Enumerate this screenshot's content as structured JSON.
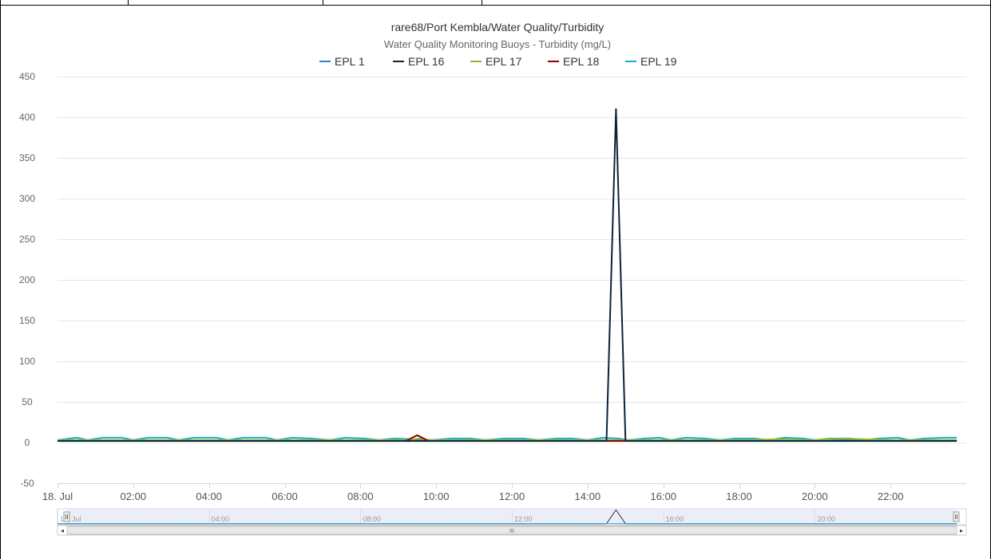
{
  "chart_data": {
    "type": "line",
    "title": "rare68/Port Kembla/Water Quality/Turbidity",
    "subtitle": "Water Quality Monitoring Buoys - Turbidity (mg/L)",
    "xlabel": "",
    "ylabel": "",
    "x_unit": "hours on 18 Jul",
    "xlim": [
      0,
      24
    ],
    "ylim": [
      -50,
      450
    ],
    "y_ticks": [
      -50,
      0,
      50,
      100,
      150,
      200,
      250,
      300,
      350,
      400,
      450
    ],
    "x_ticks": [
      {
        "value": 0,
        "label": "18. Jul"
      },
      {
        "value": 2,
        "label": "02:00"
      },
      {
        "value": 4,
        "label": "04:00"
      },
      {
        "value": 6,
        "label": "06:00"
      },
      {
        "value": 8,
        "label": "08:00"
      },
      {
        "value": 10,
        "label": "10:00"
      },
      {
        "value": 12,
        "label": "12:00"
      },
      {
        "value": 14,
        "label": "14:00"
      },
      {
        "value": 16,
        "label": "16:00"
      },
      {
        "value": 18,
        "label": "18:00"
      },
      {
        "value": 20,
        "label": "20:00"
      },
      {
        "value": 22,
        "label": "22:00"
      }
    ],
    "grid": true,
    "legend_position": "top-center",
    "series": [
      {
        "name": "EPL 1",
        "color": "#2f7ed8",
        "points": [
          [
            0,
            3
          ],
          [
            2,
            3
          ],
          [
            4,
            3
          ],
          [
            6,
            3
          ],
          [
            8,
            3
          ],
          [
            10,
            3
          ],
          [
            12,
            3
          ],
          [
            14,
            3
          ],
          [
            16,
            3
          ],
          [
            18,
            3
          ],
          [
            20,
            3
          ],
          [
            22,
            3
          ],
          [
            23.75,
            3
          ]
        ]
      },
      {
        "name": "EPL 16",
        "color": "#0d233a",
        "points": [
          [
            0,
            2
          ],
          [
            2,
            2
          ],
          [
            4,
            2
          ],
          [
            6,
            2
          ],
          [
            8,
            2
          ],
          [
            10,
            2
          ],
          [
            12,
            2
          ],
          [
            14,
            2
          ],
          [
            14.5,
            2
          ],
          [
            14.75,
            410
          ],
          [
            15,
            2
          ],
          [
            16,
            2
          ],
          [
            18,
            2
          ],
          [
            20,
            2
          ],
          [
            22,
            2
          ],
          [
            23.75,
            2
          ]
        ]
      },
      {
        "name": "EPL 17",
        "color": "#8bbc21",
        "points": [
          [
            0,
            3
          ],
          [
            2,
            3
          ],
          [
            4,
            3
          ],
          [
            6,
            3
          ],
          [
            8,
            3
          ],
          [
            9.3,
            3
          ],
          [
            9.55,
            5
          ],
          [
            9.8,
            3
          ],
          [
            12,
            3
          ],
          [
            14,
            3
          ],
          [
            16,
            3
          ],
          [
            18,
            3
          ],
          [
            19,
            4
          ],
          [
            20,
            3
          ],
          [
            20.7,
            5
          ],
          [
            22,
            3
          ],
          [
            23.75,
            3
          ]
        ]
      },
      {
        "name": "EPL 18",
        "color": "#910000",
        "points": [
          [
            0,
            2
          ],
          [
            2,
            2
          ],
          [
            4,
            2
          ],
          [
            6,
            2
          ],
          [
            8,
            2
          ],
          [
            9.2,
            2
          ],
          [
            9.5,
            9
          ],
          [
            9.8,
            2
          ],
          [
            12,
            2
          ],
          [
            14,
            2
          ],
          [
            16,
            2
          ],
          [
            18,
            2
          ],
          [
            20,
            2
          ],
          [
            22,
            2
          ],
          [
            23.75,
            2
          ]
        ]
      },
      {
        "name": "EPL 19",
        "color": "#1aadce",
        "points": [
          [
            0,
            3
          ],
          [
            0.5,
            6
          ],
          [
            0.8,
            3
          ],
          [
            1.2,
            6
          ],
          [
            1.7,
            6
          ],
          [
            2.0,
            3
          ],
          [
            2.4,
            6
          ],
          [
            2.9,
            6
          ],
          [
            3.2,
            3
          ],
          [
            3.6,
            6
          ],
          [
            4.2,
            6
          ],
          [
            4.5,
            3
          ],
          [
            4.9,
            6
          ],
          [
            5.5,
            6
          ],
          [
            5.8,
            3
          ],
          [
            6.2,
            6
          ],
          [
            6.7,
            5
          ],
          [
            7.2,
            3
          ],
          [
            7.6,
            6
          ],
          [
            8.1,
            5
          ],
          [
            8.5,
            3
          ],
          [
            8.9,
            5
          ],
          [
            9.4,
            4
          ],
          [
            9.9,
            3
          ],
          [
            10.4,
            5
          ],
          [
            10.9,
            5
          ],
          [
            11.3,
            3
          ],
          [
            11.8,
            5
          ],
          [
            12.3,
            5
          ],
          [
            12.7,
            3
          ],
          [
            13.2,
            5
          ],
          [
            13.6,
            5
          ],
          [
            14.0,
            3
          ],
          [
            14.4,
            6
          ],
          [
            14.8,
            5
          ],
          [
            15.1,
            3
          ],
          [
            15.5,
            5
          ],
          [
            15.9,
            6
          ],
          [
            16.2,
            3
          ],
          [
            16.6,
            6
          ],
          [
            17.1,
            5
          ],
          [
            17.5,
            3
          ],
          [
            17.9,
            5
          ],
          [
            18.4,
            5
          ],
          [
            18.8,
            3
          ],
          [
            19.2,
            6
          ],
          [
            19.7,
            5
          ],
          [
            20.0,
            3
          ],
          [
            20.4,
            5
          ],
          [
            20.9,
            5
          ],
          [
            21.3,
            3
          ],
          [
            21.7,
            5
          ],
          [
            22.2,
            6
          ],
          [
            22.5,
            3
          ],
          [
            22.9,
            5
          ],
          [
            23.4,
            6
          ],
          [
            23.75,
            6
          ]
        ]
      }
    ],
    "navigator": {
      "labels": [
        {
          "value": 0,
          "label": "18. Jul"
        },
        {
          "value": 4,
          "label": "04:00"
        },
        {
          "value": 8,
          "label": "08:00"
        },
        {
          "value": 12,
          "label": "12:00"
        },
        {
          "value": 16,
          "label": "16:00"
        },
        {
          "value": 20,
          "label": "20:00"
        }
      ],
      "scrollbar_left": "◂",
      "scrollbar_right": "▸",
      "scrollbar_grip": "III"
    }
  },
  "header_cells": [
    "",
    "",
    "",
    ""
  ]
}
